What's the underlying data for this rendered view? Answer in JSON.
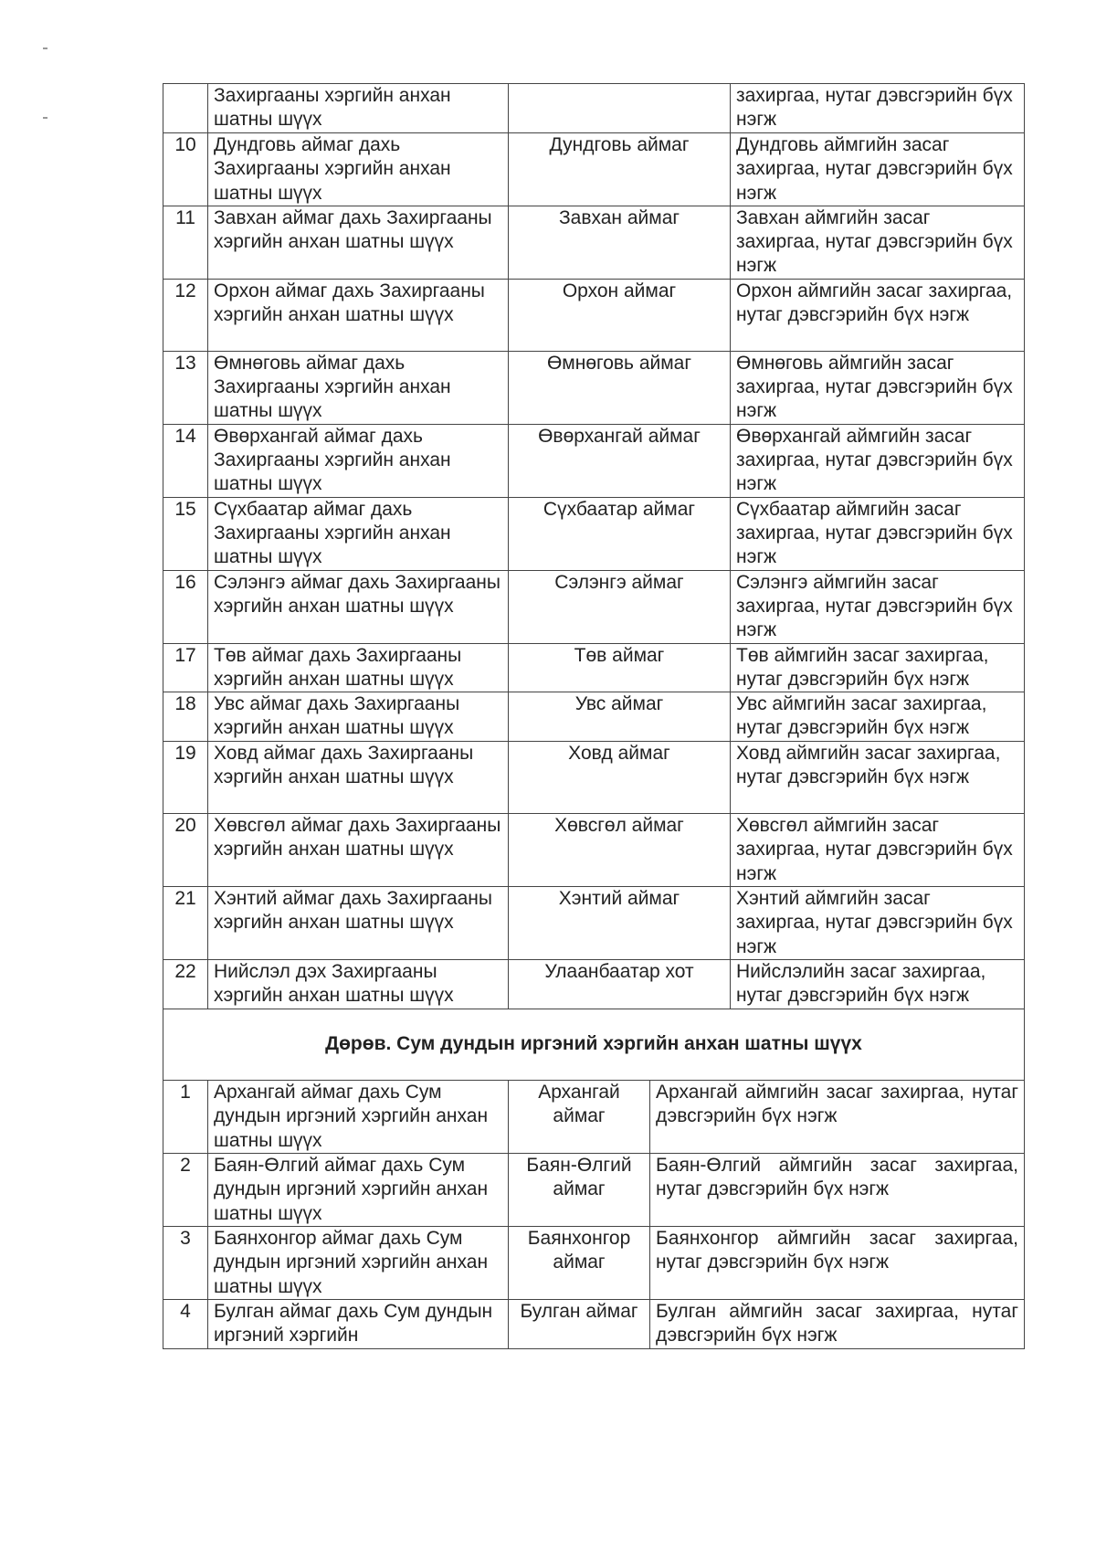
{
  "section3_rows": [
    {
      "num": "",
      "court": "Захиргааны хэргийн анхан шатны шүүх",
      "seat": "",
      "jurisdiction": "захиргаа, нутаг дэвсгэрийн бүх нэгж"
    },
    {
      "num": "10",
      "court": "Дундговь аймаг дахь Захиргааны хэргийн анхан шатны шүүх",
      "seat": "Дундговь аймаг",
      "jurisdiction": "Дундговь аймгийн засаг захиргаа, нутаг дэвсгэрийн бүх нэгж"
    },
    {
      "num": "11",
      "court": "Завхан аймаг дахь Захиргааны хэргийн анхан шатны шүүх",
      "seat": "Завхан аймаг",
      "jurisdiction": "Завхан аймгийн засаг захиргаа, нутаг дэвсгэрийн бүх нэгж"
    },
    {
      "num": "12",
      "court": "Орхон аймаг дахь Захиргааны хэргийн анхан шатны шүүх",
      "seat": "Орхон аймаг",
      "jurisdiction": "Орхон аймгийн засаг захиргаа, нутаг дэвсгэрийн бүх нэгж"
    },
    {
      "num": "13",
      "court": "Өмнөговь аймаг дахь Захиргааны хэргийн анхан шатны шүүх",
      "seat": "Өмнөговь аймаг",
      "jurisdiction": "Өмнөговь аймгийн засаг захиргаа, нутаг дэвсгэрийн бүх нэгж"
    },
    {
      "num": "14",
      "court": "Өвөрхангай аймаг дахь Захиргааны хэргийн анхан шатны шүүх",
      "seat": "Өвөрхангай аймаг",
      "jurisdiction": "Өвөрхангай аймгийн засаг захиргаа, нутаг дэвсгэрийн бүх нэгж"
    },
    {
      "num": "15",
      "court": "Сүхбаатар аймаг дахь Захиргааны хэргийн анхан шатны шүүх",
      "seat": "Сүхбаатар аймаг",
      "jurisdiction": "Сүхбаатар аймгийн засаг захиргаа, нутаг дэвсгэрийн бүх нэгж"
    },
    {
      "num": "16",
      "court": "Сэлэнгэ аймаг дахь Захиргааны хэргийн анхан шатны шүүх",
      "seat": "Сэлэнгэ аймаг",
      "jurisdiction": "Сэлэнгэ аймгийн засаг захиргаа, нутаг дэвсгэрийн бүх нэгж"
    },
    {
      "num": "17",
      "court": "Төв аймаг дахь Захиргааны хэргийн анхан шатны шүүх",
      "seat": "Төв аймаг",
      "jurisdiction": "Төв аймгийн засаг захиргаа, нутаг дэвсгэрийн бүх нэгж"
    },
    {
      "num": "18",
      "court": "Увс аймаг дахь Захиргааны хэргийн анхан шатны шүүх",
      "seat": "Увс аймаг",
      "jurisdiction": "Увс аймгийн засаг захиргаа, нутаг дэвсгэрийн бүх нэгж"
    },
    {
      "num": "19",
      "court": "Ховд аймаг дахь Захиргааны хэргийн анхан шатны шүүх",
      "seat": "Ховд аймаг",
      "jurisdiction": "Ховд аймгийн засаг захиргаа, нутаг дэвсгэрийн бүх нэгж"
    },
    {
      "num": "20",
      "court": "Хөвсгөл аймаг дахь Захиргааны хэргийн анхан шатны шүүх",
      "seat": "Хөвсгөл аймаг",
      "jurisdiction": "Хөвсгөл аймгийн засаг захиргаа, нутаг дэвсгэрийн бүх нэгж"
    },
    {
      "num": "21",
      "court": "Хэнтий аймаг дахь Захиргааны хэргийн анхан шатны шүүх",
      "seat": "Хэнтий аймаг",
      "jurisdiction": "Хэнтий аймгийн засаг захиргаа, нутаг дэвсгэрийн бүх нэгж"
    },
    {
      "num": "22",
      "court": "Нийслэл дэх Захиргааны хэргийн анхан шатны шүүх",
      "seat": "Улаанбаатар хот",
      "jurisdiction": "Нийслэлийн засаг захиргаа, нутаг дэвсгэрийн бүх нэгж"
    }
  ],
  "section4_heading": "Дөрөв. Сум дундын иргэний хэргийн анхан шатны шүүх",
  "section4_rows": [
    {
      "num": "1",
      "court": "Архангай аймаг дахь Сум дундын иргэний хэргийн анхан шатны шүүх",
      "seat": "Архангай аймаг",
      "jurisdiction": "Архангай аймгийн засаг захиргаа, нутаг дэвсгэрийн бүх нэгж"
    },
    {
      "num": "2",
      "court": "Баян-Өлгий аймаг дахь Сум дундын иргэний хэргийн анхан шатны шүүх",
      "seat": "Баян-Өлгий аймаг",
      "jurisdiction": "Баян-Өлгий аймгийн засаг захиргаа, нутаг дэвсгэрийн бүх нэгж"
    },
    {
      "num": "3",
      "court": "Баянхонгор аймаг дахь Сум дундын иргэний хэргийн анхан шатны шүүх",
      "seat": "Баянхонгор аймаг",
      "jurisdiction": "Баянхонгор аймгийн засаг захиргаа, нутаг дэвсгэрийн бүх нэгж"
    },
    {
      "num": "4",
      "court": "Булган аймаг дахь Сум дундын иргэний хэргийн",
      "seat": "Булган аймаг",
      "jurisdiction": "Булган аймгийн засаг захиргаа, нутаг дэвсгэрийн бүх нэгж"
    }
  ]
}
